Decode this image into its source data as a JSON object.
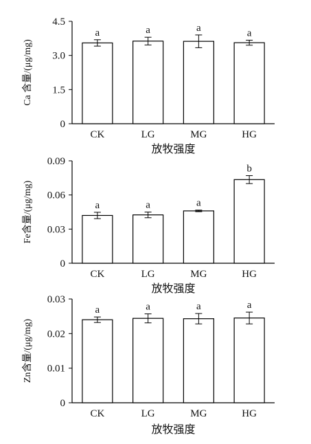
{
  "chart_data": [
    {
      "type": "bar",
      "categories": [
        "CK",
        "LG",
        "MG",
        "HG"
      ],
      "values": [
        3.55,
        3.63,
        3.62,
        3.56
      ],
      "errors": [
        0.14,
        0.17,
        0.28,
        0.11
      ],
      "significance": [
        "a",
        "a",
        "a",
        "a"
      ],
      "ylabel": "Ca 含量/(μg/mg)",
      "xlabel": "放牧强度",
      "ylim": [
        0,
        4.5
      ],
      "yticks": [
        "0",
        "1.5",
        "3.0",
        "4.5"
      ],
      "ytick_values": [
        0,
        1.5,
        3.0,
        4.5
      ]
    },
    {
      "type": "bar",
      "categories": [
        "CK",
        "LG",
        "MG",
        "HG"
      ],
      "values": [
        0.042,
        0.0425,
        0.046,
        0.0735
      ],
      "errors": [
        0.0028,
        0.0025,
        0.0007,
        0.0035
      ],
      "significance": [
        "a",
        "a",
        "a",
        "b"
      ],
      "ylabel": "Fe含量/(μg/mg)",
      "xlabel": "放牧强度",
      "ylim": [
        0,
        0.09
      ],
      "yticks": [
        "0",
        "0.03",
        "0.06",
        "0.09"
      ],
      "ytick_values": [
        0,
        0.03,
        0.06,
        0.09
      ]
    },
    {
      "type": "bar",
      "categories": [
        "CK",
        "LG",
        "MG",
        "HG"
      ],
      "values": [
        0.024,
        0.0244,
        0.0243,
        0.0245
      ],
      "errors": [
        0.0008,
        0.0013,
        0.0015,
        0.0017
      ],
      "significance": [
        "a",
        "a",
        "a",
        "a"
      ],
      "ylabel": "Zn含量/(μg/mg)",
      "xlabel": "放牧强度",
      "ylim": [
        0,
        0.03
      ],
      "yticks": [
        "0",
        "0.01",
        "0.02",
        "0.03"
      ],
      "ytick_values": [
        0,
        0.01,
        0.02,
        0.03
      ]
    }
  ]
}
